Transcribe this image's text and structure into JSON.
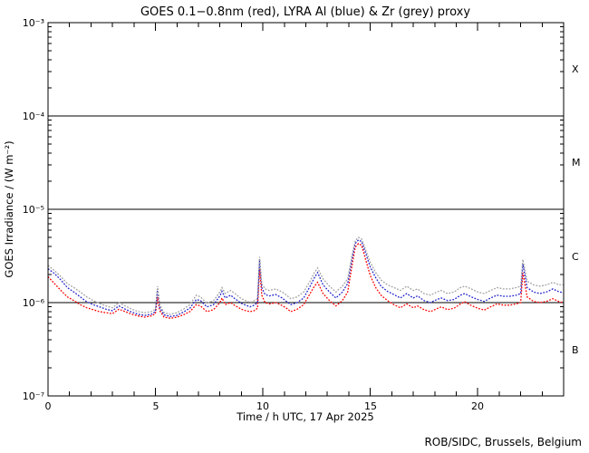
{
  "chart_data": {
    "type": "line",
    "title": "GOES 0.1−0.8nm (red), LYRA Al (blue) & Zr (grey) proxy",
    "xlabel": "Time / h UTC, 17 Apr 2025",
    "ylabel": "GOES Irradiance / (W m⁻²)",
    "credit": "ROB/SIDC, Brussels, Belgium",
    "x_range_hours": [
      0,
      24
    ],
    "x_major_ticks": [
      0,
      5,
      10,
      15,
      20
    ],
    "x_minor_tick_step_hours": 1,
    "y_scale": "log",
    "y_range_exponents": [
      -7,
      -3
    ],
    "y_tick_labels": [
      "10⁻³",
      "10⁻⁴",
      "10⁻⁵",
      "10⁻⁶",
      "10⁻⁷"
    ],
    "gridline_exponents": [
      -4,
      -5,
      -6
    ],
    "flare_classes": [
      {
        "label": "X",
        "band_exponents": [
          -4,
          -3
        ]
      },
      {
        "label": "M",
        "band_exponents": [
          -5,
          -4
        ]
      },
      {
        "label": "C",
        "band_exponents": [
          -6,
          -5
        ]
      },
      {
        "label": "B",
        "band_exponents": [
          -7,
          -6
        ]
      }
    ],
    "grid": "horizontal-lines-at-decades",
    "legend_position": "in-title",
    "unit": "1e-6 W m^-2",
    "x_hours": [
      0,
      0.3,
      0.6,
      0.9,
      1.2,
      1.5,
      1.8,
      2.1,
      2.4,
      2.7,
      3.0,
      3.3,
      3.6,
      3.9,
      4.2,
      4.5,
      4.8,
      5.0,
      5.1,
      5.2,
      5.4,
      5.7,
      6.0,
      6.3,
      6.6,
      6.9,
      7.1,
      7.4,
      7.7,
      8.0,
      8.1,
      8.25,
      8.5,
      8.7,
      9.0,
      9.2,
      9.4,
      9.6,
      9.75,
      9.85,
      9.95,
      10.1,
      10.3,
      10.6,
      10.9,
      11.1,
      11.3,
      11.6,
      11.9,
      12.2,
      12.4,
      12.55,
      12.8,
      13.1,
      13.4,
      13.7,
      13.95,
      14.15,
      14.3,
      14.45,
      14.6,
      14.8,
      15.0,
      15.25,
      15.5,
      15.8,
      16.1,
      16.4,
      16.7,
      17.0,
      17.2,
      17.5,
      17.8,
      18.1,
      18.3,
      18.6,
      18.9,
      19.2,
      19.4,
      19.7,
      20.0,
      20.3,
      20.6,
      20.9,
      21.2,
      21.5,
      21.8,
      22.0,
      22.1,
      22.3,
      22.6,
      22.9,
      23.2,
      23.5,
      23.8,
      24.0
    ],
    "series": [
      {
        "name": "GOES 0.1-0.8nm",
        "color_key": "red",
        "values_1e6": [
          1.9,
          1.6,
          1.35,
          1.15,
          1.05,
          0.95,
          0.88,
          0.84,
          0.8,
          0.78,
          0.76,
          0.85,
          0.8,
          0.75,
          0.72,
          0.7,
          0.72,
          0.76,
          1.15,
          0.82,
          0.7,
          0.68,
          0.7,
          0.74,
          0.8,
          0.95,
          0.92,
          0.8,
          0.84,
          1.0,
          1.12,
          0.95,
          1.0,
          0.93,
          0.85,
          0.82,
          0.8,
          0.82,
          0.87,
          2.3,
          1.2,
          1.0,
          0.97,
          1.0,
          0.93,
          0.87,
          0.8,
          0.85,
          0.95,
          1.25,
          1.5,
          1.65,
          1.25,
          1.05,
          0.92,
          1.05,
          1.3,
          2.5,
          3.9,
          4.3,
          4.1,
          2.8,
          1.95,
          1.45,
          1.2,
          1.05,
          0.95,
          0.88,
          0.97,
          0.88,
          0.92,
          0.84,
          0.8,
          0.86,
          0.9,
          0.84,
          0.87,
          0.97,
          1.02,
          0.93,
          0.87,
          0.83,
          0.9,
          0.97,
          0.94,
          0.94,
          0.97,
          1.0,
          2.1,
          1.15,
          1.03,
          1.0,
          1.03,
          1.1,
          1.02,
          1.0
        ]
      },
      {
        "name": "LYRA Al proxy",
        "color_key": "blue",
        "values_1e6": [
          2.3,
          2.05,
          1.75,
          1.45,
          1.3,
          1.15,
          1.02,
          0.95,
          0.9,
          0.85,
          0.82,
          0.92,
          0.85,
          0.79,
          0.75,
          0.73,
          0.75,
          0.8,
          1.4,
          0.88,
          0.74,
          0.71,
          0.73,
          0.79,
          0.87,
          1.08,
          1.05,
          0.9,
          0.95,
          1.18,
          1.32,
          1.12,
          1.2,
          1.1,
          0.98,
          0.94,
          0.9,
          0.94,
          1.0,
          2.9,
          1.45,
          1.22,
          1.18,
          1.22,
          1.12,
          1.03,
          0.95,
          1.0,
          1.12,
          1.5,
          1.85,
          2.1,
          1.55,
          1.3,
          1.12,
          1.3,
          1.6,
          2.95,
          4.3,
          4.7,
          4.5,
          3.3,
          2.4,
          1.85,
          1.5,
          1.32,
          1.22,
          1.12,
          1.25,
          1.12,
          1.18,
          1.05,
          1.0,
          1.08,
          1.12,
          1.05,
          1.08,
          1.2,
          1.25,
          1.15,
          1.08,
          1.03,
          1.12,
          1.2,
          1.17,
          1.17,
          1.2,
          1.25,
          2.6,
          1.45,
          1.3,
          1.25,
          1.3,
          1.4,
          1.3,
          1.28
        ]
      },
      {
        "name": "LYRA Zr proxy",
        "color_key": "grey",
        "values_1e6": [
          2.5,
          2.2,
          1.9,
          1.6,
          1.45,
          1.3,
          1.15,
          1.05,
          0.98,
          0.92,
          0.88,
          1.0,
          0.92,
          0.85,
          0.8,
          0.78,
          0.8,
          0.85,
          1.5,
          0.95,
          0.78,
          0.75,
          0.78,
          0.85,
          0.95,
          1.2,
          1.15,
          0.98,
          1.05,
          1.3,
          1.45,
          1.25,
          1.35,
          1.25,
          1.1,
          1.05,
          1.0,
          1.05,
          1.1,
          3.1,
          1.6,
          1.4,
          1.35,
          1.4,
          1.3,
          1.2,
          1.1,
          1.15,
          1.3,
          1.7,
          2.1,
          2.35,
          1.8,
          1.5,
          1.3,
          1.5,
          1.8,
          3.2,
          4.6,
          5.0,
          4.8,
          3.6,
          2.7,
          2.1,
          1.75,
          1.55,
          1.45,
          1.35,
          1.5,
          1.35,
          1.4,
          1.25,
          1.2,
          1.3,
          1.35,
          1.25,
          1.3,
          1.45,
          1.5,
          1.4,
          1.3,
          1.25,
          1.35,
          1.45,
          1.4,
          1.4,
          1.45,
          1.5,
          2.9,
          1.7,
          1.55,
          1.5,
          1.55,
          1.65,
          1.55,
          1.55
        ]
      }
    ]
  },
  "colors": {
    "red": "#ff0000",
    "blue": "#2222cc",
    "grey": "#a0a0a0",
    "axis": "#000000",
    "background": "#ffffff"
  }
}
